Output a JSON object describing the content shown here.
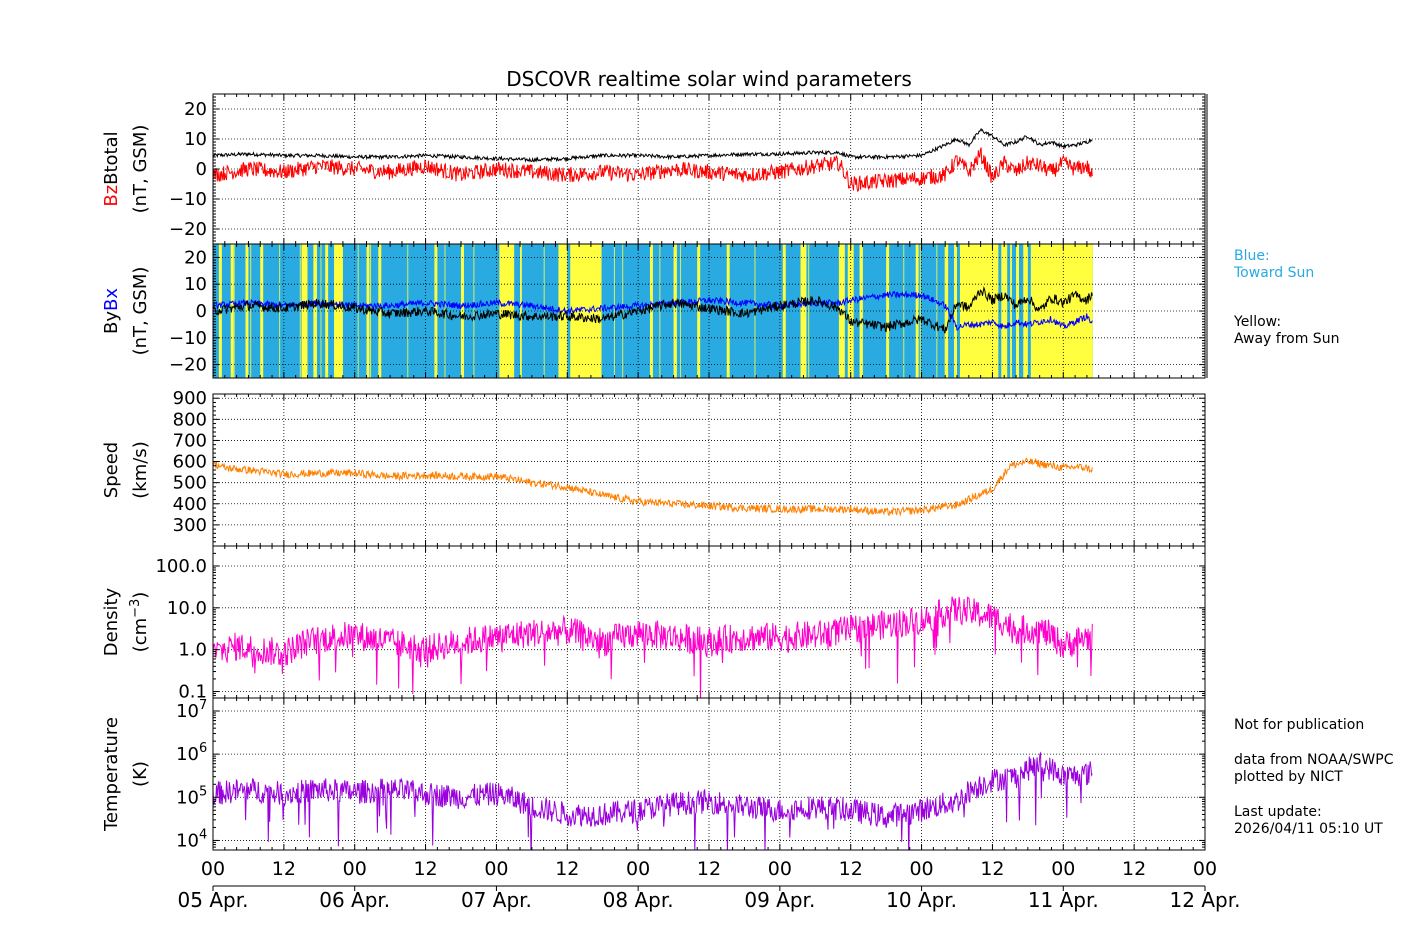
{
  "chart_data": {
    "title": "DSCOVR realtime solar wind parameters",
    "type": "line",
    "time_axis": {
      "start": "2026-04-05 00:00 UT",
      "end": "2026-04-12 00:00 UT",
      "range_hours": [
        0,
        168
      ],
      "hour_tick_labels": [
        "00",
        "12",
        "00",
        "12",
        "00",
        "12",
        "00",
        "12",
        "00",
        "12",
        "00",
        "12",
        "00",
        "12",
        "00"
      ],
      "date_labels": [
        "05 Apr.",
        "06 Apr.",
        "07 Apr.",
        "08 Apr.",
        "09 Apr.",
        "10 Apr.",
        "11 Apr.",
        "12 Apr."
      ],
      "data_end_hours": 149
    },
    "panels": [
      {
        "id": "mag",
        "ylabel_parts": [
          "Bz",
          "Btotal",
          "(nT, GSM)"
        ],
        "scale": "linear",
        "ylim": [
          -25,
          25
        ],
        "ytick_labels": [
          "20",
          "10",
          "0",
          "−10",
          "−20"
        ],
        "ytick_values": [
          20,
          10,
          0,
          -10,
          -20
        ],
        "series": [
          {
            "name": "Btotal",
            "color": "#000000",
            "x": [
              0,
              6,
              12,
              18,
              24,
              30,
              36,
              42,
              48,
              54,
              60,
              66,
              72,
              78,
              84,
              90,
              96,
              102,
              106,
              108,
              114,
              120,
              124,
              126,
              128,
              130,
              132,
              134,
              136,
              138,
              140,
              142,
              144,
              146,
              148,
              149
            ],
            "y": [
              4.5,
              5,
              4.5,
              4.5,
              4,
              4,
              4.5,
              4,
              3.5,
              3,
              3.5,
              4.5,
              4.5,
              4,
              4.5,
              5,
              5,
              5.5,
              5.5,
              4,
              4,
              4.5,
              8,
              10,
              8,
              13,
              11,
              8,
              9,
              11,
              8,
              9,
              7.5,
              8,
              9,
              10
            ],
            "noise": 0.6
          },
          {
            "name": "Bz",
            "color": "#ff0000",
            "x": [
              0,
              6,
              12,
              18,
              24,
              30,
              36,
              42,
              48,
              54,
              60,
              66,
              72,
              78,
              84,
              90,
              96,
              102,
              106,
              108,
              114,
              120,
              124,
              126,
              128,
              130,
              132,
              134,
              136,
              138,
              140,
              142,
              144,
              146,
              148,
              149
            ],
            "y": [
              -2,
              0,
              -1,
              1,
              0,
              -1,
              1,
              -2,
              0,
              -1,
              -2,
              -1,
              -2,
              0,
              -1,
              -2,
              -1,
              1,
              2,
              -5,
              -4,
              -3,
              -2,
              3,
              -1,
              5,
              -3,
              2,
              -1,
              2,
              1,
              -1,
              2,
              0,
              1,
              -3
            ],
            "noise": 2.6
          }
        ]
      },
      {
        "id": "bxby",
        "ylabel_parts": [
          "By",
          "Bx",
          "(nT, GSM)"
        ],
        "scale": "linear",
        "ylim": [
          -25,
          25
        ],
        "ytick_labels": [
          "20",
          "10",
          "0",
          "−10",
          "−20"
        ],
        "ytick_values": [
          20,
          10,
          0,
          -10,
          -20
        ],
        "background_legend": {
          "toward": "Blue:\nToward Sun",
          "away": "Yellow:\nAway from Sun"
        },
        "sector_colors": {
          "toward": "#29abe2",
          "away": "#ffff40"
        },
        "away_intervals_hours": [
          [
            1,
            1.5
          ],
          [
            3,
            3.5
          ],
          [
            5.5,
            6
          ],
          [
            8,
            8.5
          ],
          [
            15,
            16
          ],
          [
            17,
            17.6
          ],
          [
            19,
            19.5
          ],
          [
            20.5,
            22
          ],
          [
            26,
            26.5
          ],
          [
            28,
            28.5
          ],
          [
            37.5,
            38
          ],
          [
            42,
            42.5
          ],
          [
            48.5,
            51
          ],
          [
            52,
            52.3
          ],
          [
            58.5,
            60
          ],
          [
            60.5,
            65.8
          ],
          [
            74,
            74.5
          ],
          [
            78,
            78.5
          ],
          [
            82,
            82.5
          ],
          [
            87,
            87.5
          ],
          [
            96.5,
            97
          ],
          [
            99.5,
            100.5
          ],
          [
            106,
            107
          ],
          [
            107.5,
            108.5
          ],
          [
            109.5,
            110
          ],
          [
            114,
            114.5
          ],
          [
            119,
            119.5
          ],
          [
            124,
            124.5
          ],
          [
            125.5,
            126
          ],
          [
            126.5,
            133
          ],
          [
            133.5,
            134.5
          ],
          [
            135,
            135.3
          ],
          [
            136,
            136.5
          ],
          [
            137.3,
            138
          ],
          [
            138.5,
            149
          ]
        ],
        "series": [
          {
            "name": "Bx",
            "color": "#0000ff",
            "x": [
              0,
              6,
              12,
              18,
              24,
              30,
              36,
              42,
              48,
              54,
              60,
              66,
              72,
              78,
              84,
              90,
              96,
              102,
              106,
              108,
              114,
              120,
              124,
              126,
              128,
              130,
              132,
              134,
              136,
              138,
              140,
              142,
              144,
              146,
              148,
              149
            ],
            "y": [
              2,
              3,
              2,
              3,
              2,
              2,
              3,
              2,
              3,
              2,
              0,
              1,
              2,
              3,
              4,
              3,
              2,
              3,
              3,
              4,
              6,
              6,
              2,
              -6,
              -5,
              -5,
              -4,
              -6,
              -4,
              -5,
              -4,
              -3,
              -6,
              -4,
              -2,
              -5
            ],
            "noise": 1.2
          },
          {
            "name": "By",
            "color": "#000000",
            "x": [
              0,
              6,
              12,
              18,
              24,
              30,
              36,
              42,
              48,
              54,
              60,
              66,
              72,
              78,
              84,
              90,
              96,
              102,
              106,
              108,
              114,
              120,
              124,
              126,
              128,
              130,
              132,
              134,
              136,
              138,
              140,
              142,
              144,
              146,
              148,
              149
            ],
            "y": [
              0,
              2,
              1,
              3,
              1,
              -1,
              0,
              -2,
              -1,
              -2,
              -2,
              -3,
              0,
              3,
              1,
              -1,
              2,
              4,
              1,
              -4,
              -6,
              -3,
              -7,
              3,
              1,
              8,
              4,
              6,
              2,
              5,
              0,
              5,
              3,
              6,
              4,
              7
            ],
            "noise": 1.8
          }
        ]
      },
      {
        "id": "speed",
        "ylabel_parts": [
          "Speed",
          "(km/s)"
        ],
        "scale": "linear",
        "ylim": [
          200,
          920
        ],
        "ytick_labels": [
          "900",
          "800",
          "700",
          "600",
          "500",
          "400",
          "300"
        ],
        "ytick_values": [
          900,
          800,
          700,
          600,
          500,
          400,
          300
        ],
        "series": [
          {
            "name": "Speed",
            "color": "#ff8000",
            "x": [
              0,
              2,
              6,
              12,
              18,
              24,
              30,
              36,
              42,
              48,
              54,
              60,
              66,
              72,
              78,
              84,
              90,
              96,
              102,
              108,
              114,
              120,
              126,
              132,
              135,
              138,
              140,
              144,
              146,
              148,
              149
            ],
            "y": [
              590,
              570,
              560,
              540,
              545,
              545,
              530,
              535,
              530,
              530,
              500,
              480,
              440,
              410,
              400,
              390,
              380,
              375,
              375,
              375,
              360,
              370,
              395,
              470,
              580,
              600,
              590,
              570,
              575,
              570,
              560
            ],
            "noise": 18
          }
        ]
      },
      {
        "id": "density",
        "ylabel_parts": [
          "Density",
          "(cm",
          "−3",
          ")"
        ],
        "scale": "log",
        "ylim": [
          0.07,
          300
        ],
        "ytick_labels": [
          "100.0",
          "10.0",
          "1.0",
          "0.1"
        ],
        "ytick_values": [
          100,
          10,
          1,
          0.1
        ],
        "series": [
          {
            "name": "Density",
            "color": "#ff00cc",
            "x": [
              0,
              4,
              8,
              12,
              16,
              20,
              24,
              30,
              36,
              42,
              48,
              54,
              60,
              66,
              72,
              78,
              84,
              90,
              96,
              102,
              108,
              114,
              120,
              126,
              132,
              136,
              140,
              144,
              148,
              149
            ],
            "y": [
              0.8,
              1.2,
              1.0,
              0.8,
              1.5,
              2.0,
              2.2,
              1.5,
              1.0,
              1.5,
              2.0,
              2.5,
              2.8,
              1.5,
              2.5,
              2.0,
              1.5,
              2.0,
              2.0,
              2.2,
              3.0,
              4.0,
              5.0,
              9.0,
              6.0,
              3.0,
              3.0,
              1.2,
              2.0,
              2.0
            ],
            "noise_log": 0.35
          }
        ]
      },
      {
        "id": "temperature",
        "ylabel_parts": [
          "Temperature",
          "(K)"
        ],
        "scale": "log",
        "ylim": [
          6000,
          20000000
        ],
        "ytick_labels": [
          "10",
          "10",
          "10",
          "10"
        ],
        "ytick_exponents": [
          "7",
          "6",
          "5",
          "4"
        ],
        "ytick_values": [
          10000000,
          1000000,
          100000,
          10000
        ],
        "series": [
          {
            "name": "Temperature",
            "color": "#9900dd",
            "x": [
              0,
              6,
              12,
              18,
              24,
              30,
              36,
              42,
              48,
              54,
              60,
              66,
              72,
              78,
              84,
              90,
              96,
              102,
              108,
              114,
              120,
              126,
              132,
              136,
              140,
              144,
              148,
              149
            ],
            "y": [
              120000,
              150000,
              120000,
              150000,
              130000,
              150000,
              120000,
              100000,
              120000,
              60000,
              40000,
              40000,
              50000,
              70000,
              80000,
              60000,
              50000,
              60000,
              50000,
              35000,
              50000,
              80000,
              250000,
              300000,
              600000,
              300000,
              350000,
              400000
            ],
            "noise_log": 0.28
          }
        ]
      }
    ],
    "annotations": {
      "not_for_publication": "Not for publication",
      "source": "data from NOAA/SWPC\nplotted by NICT",
      "last_update": "Last update:\n2026/04/11 05:10 UT"
    }
  }
}
